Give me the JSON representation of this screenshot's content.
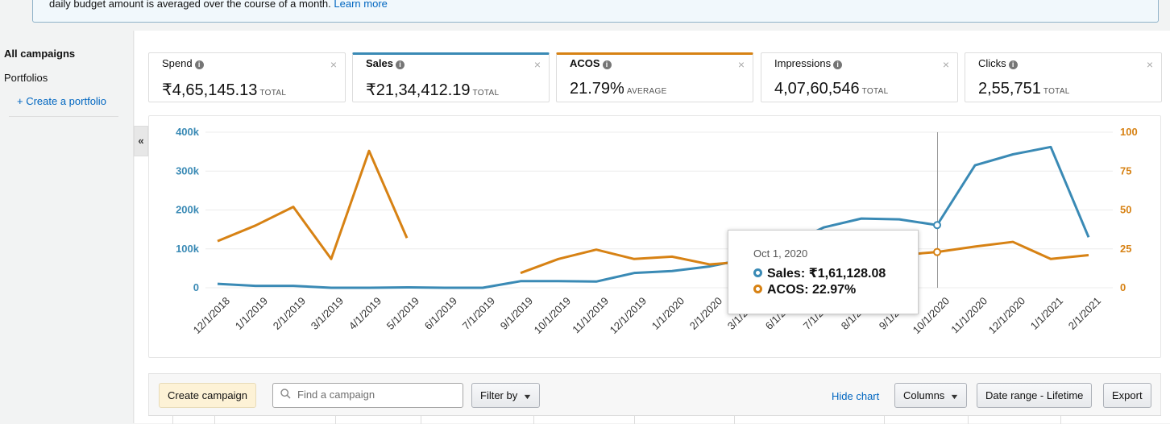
{
  "banner": {
    "text": "daily budget amount is averaged over the course of a month.",
    "link": "Learn more"
  },
  "sidebar": {
    "title": "All campaigns",
    "portfolios": "Portfolios",
    "create_portfolio": "+ Create a portfolio",
    "collapse_icon": "«"
  },
  "metrics": [
    {
      "name": "Spend",
      "value": "₹4,65,145.13",
      "unit": "TOTAL",
      "selected": false
    },
    {
      "name": "Sales",
      "value": "₹21,34,412.19",
      "unit": "TOTAL",
      "selected": true,
      "color": "#3a8ab5"
    },
    {
      "name": "ACOS",
      "value": "21.79%",
      "unit": "AVERAGE",
      "selected": true,
      "color": "#d78214"
    },
    {
      "name": "Impressions",
      "value": "4,07,60,546",
      "unit": "TOTAL",
      "selected": false
    },
    {
      "name": "Clicks",
      "value": "2,55,751",
      "unit": "TOTAL",
      "selected": false
    }
  ],
  "close_symbol": "×",
  "info_symbol": "i",
  "chart_data": {
    "type": "line",
    "categories": [
      "12/1/2018",
      "1/1/2019",
      "2/1/2019",
      "3/1/2019",
      "4/1/2019",
      "5/1/2019",
      "6/1/2019",
      "7/1/2019",
      "9/1/2019",
      "10/1/2019",
      "11/1/2019",
      "12/1/2019",
      "1/1/2020",
      "2/1/2020",
      "3/1/2020",
      "6/1/2020",
      "7/1/2020",
      "8/1/2020",
      "9/1/2020",
      "10/1/2020",
      "11/1/2020",
      "12/1/2020",
      "1/1/2021",
      "2/1/2021"
    ],
    "series": [
      {
        "name": "Sales",
        "axis": "left",
        "color": "#3a8ab5",
        "values": [
          10000,
          5000,
          5000,
          0,
          0,
          1000,
          0,
          0,
          17000,
          17000,
          16000,
          38000,
          43000,
          55000,
          75000,
          108000,
          155000,
          178000,
          176000,
          161128.08,
          315000,
          343000,
          362000,
          130000
        ]
      },
      {
        "name": "ACOS",
        "axis": "right",
        "color": "#d78214",
        "values": [
          30,
          40,
          52,
          18.5,
          88,
          32,
          null,
          null,
          9.5,
          18.5,
          24.5,
          18.5,
          20,
          15,
          17,
          20,
          21,
          21,
          21,
          22.97,
          26.5,
          29.5,
          18.5,
          21
        ]
      }
    ],
    "y_left": {
      "ticks": [
        "0",
        "100k",
        "200k",
        "300k",
        "400k"
      ],
      "lim": [
        0,
        400000
      ]
    },
    "y_right": {
      "ticks": [
        "0",
        "25",
        "50",
        "75",
        "100"
      ],
      "lim": [
        0,
        100
      ]
    },
    "highlight_index": 19
  },
  "tooltip": {
    "date": "Oct 1, 2020",
    "sales_label": "Sales:",
    "sales_value": "₹1,61,128.08",
    "acos_label": "ACOS:",
    "acos_value": "22.97%"
  },
  "toolbar": {
    "create_campaign": "Create campaign",
    "search_placeholder": "Find a campaign",
    "filter_by": "Filter by",
    "hide_chart": "Hide chart",
    "columns": "Columns",
    "date_range": "Date range - Lifetime",
    "export": "Export"
  }
}
